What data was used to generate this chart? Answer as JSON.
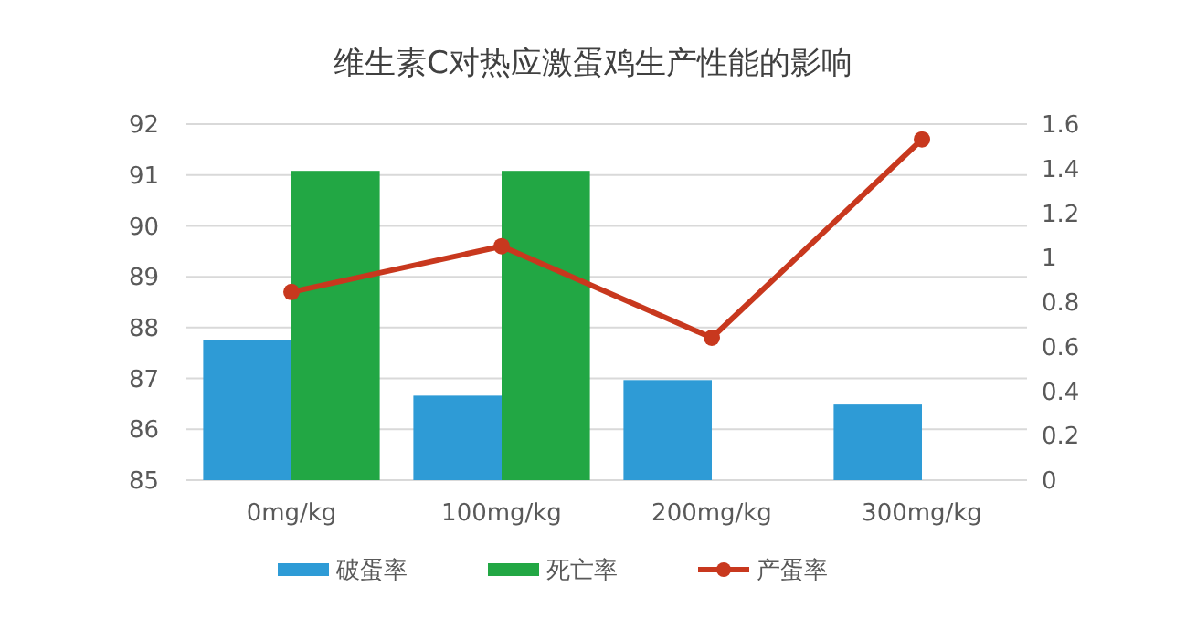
{
  "chart_data": {
    "type": "bar",
    "title": "维生素C对热应激蛋鸡生产性能的影响",
    "categories": [
      "0mg/kg",
      "100mg/kg",
      "200mg/kg",
      "300mg/kg"
    ],
    "series": [
      {
        "name": "破蛋率",
        "color": "#2e9bd6",
        "values": [
          0.63,
          0.38,
          0.45,
          0.34
        ],
        "axis": "y2"
      },
      {
        "name": "死亡率",
        "color": "#22a744",
        "values": [
          1.39,
          1.39,
          0,
          0
        ],
        "axis": "y2"
      },
      {
        "name": "产蛋率",
        "type": "line",
        "color": "#c8381e",
        "values": [
          88.7,
          89.6,
          87.8,
          91.7
        ],
        "axis": "y"
      }
    ],
    "ylim": [
      85,
      92
    ],
    "yticks": [
      85,
      86,
      87,
      88,
      89,
      90,
      91,
      92
    ],
    "y2lim": [
      0,
      1.6
    ],
    "y2ticks": [
      0,
      0.2,
      0.4,
      0.6,
      0.8,
      1,
      1.2,
      1.4,
      1.6
    ],
    "grid": "y",
    "legend": "bottom",
    "marker": "circle"
  }
}
